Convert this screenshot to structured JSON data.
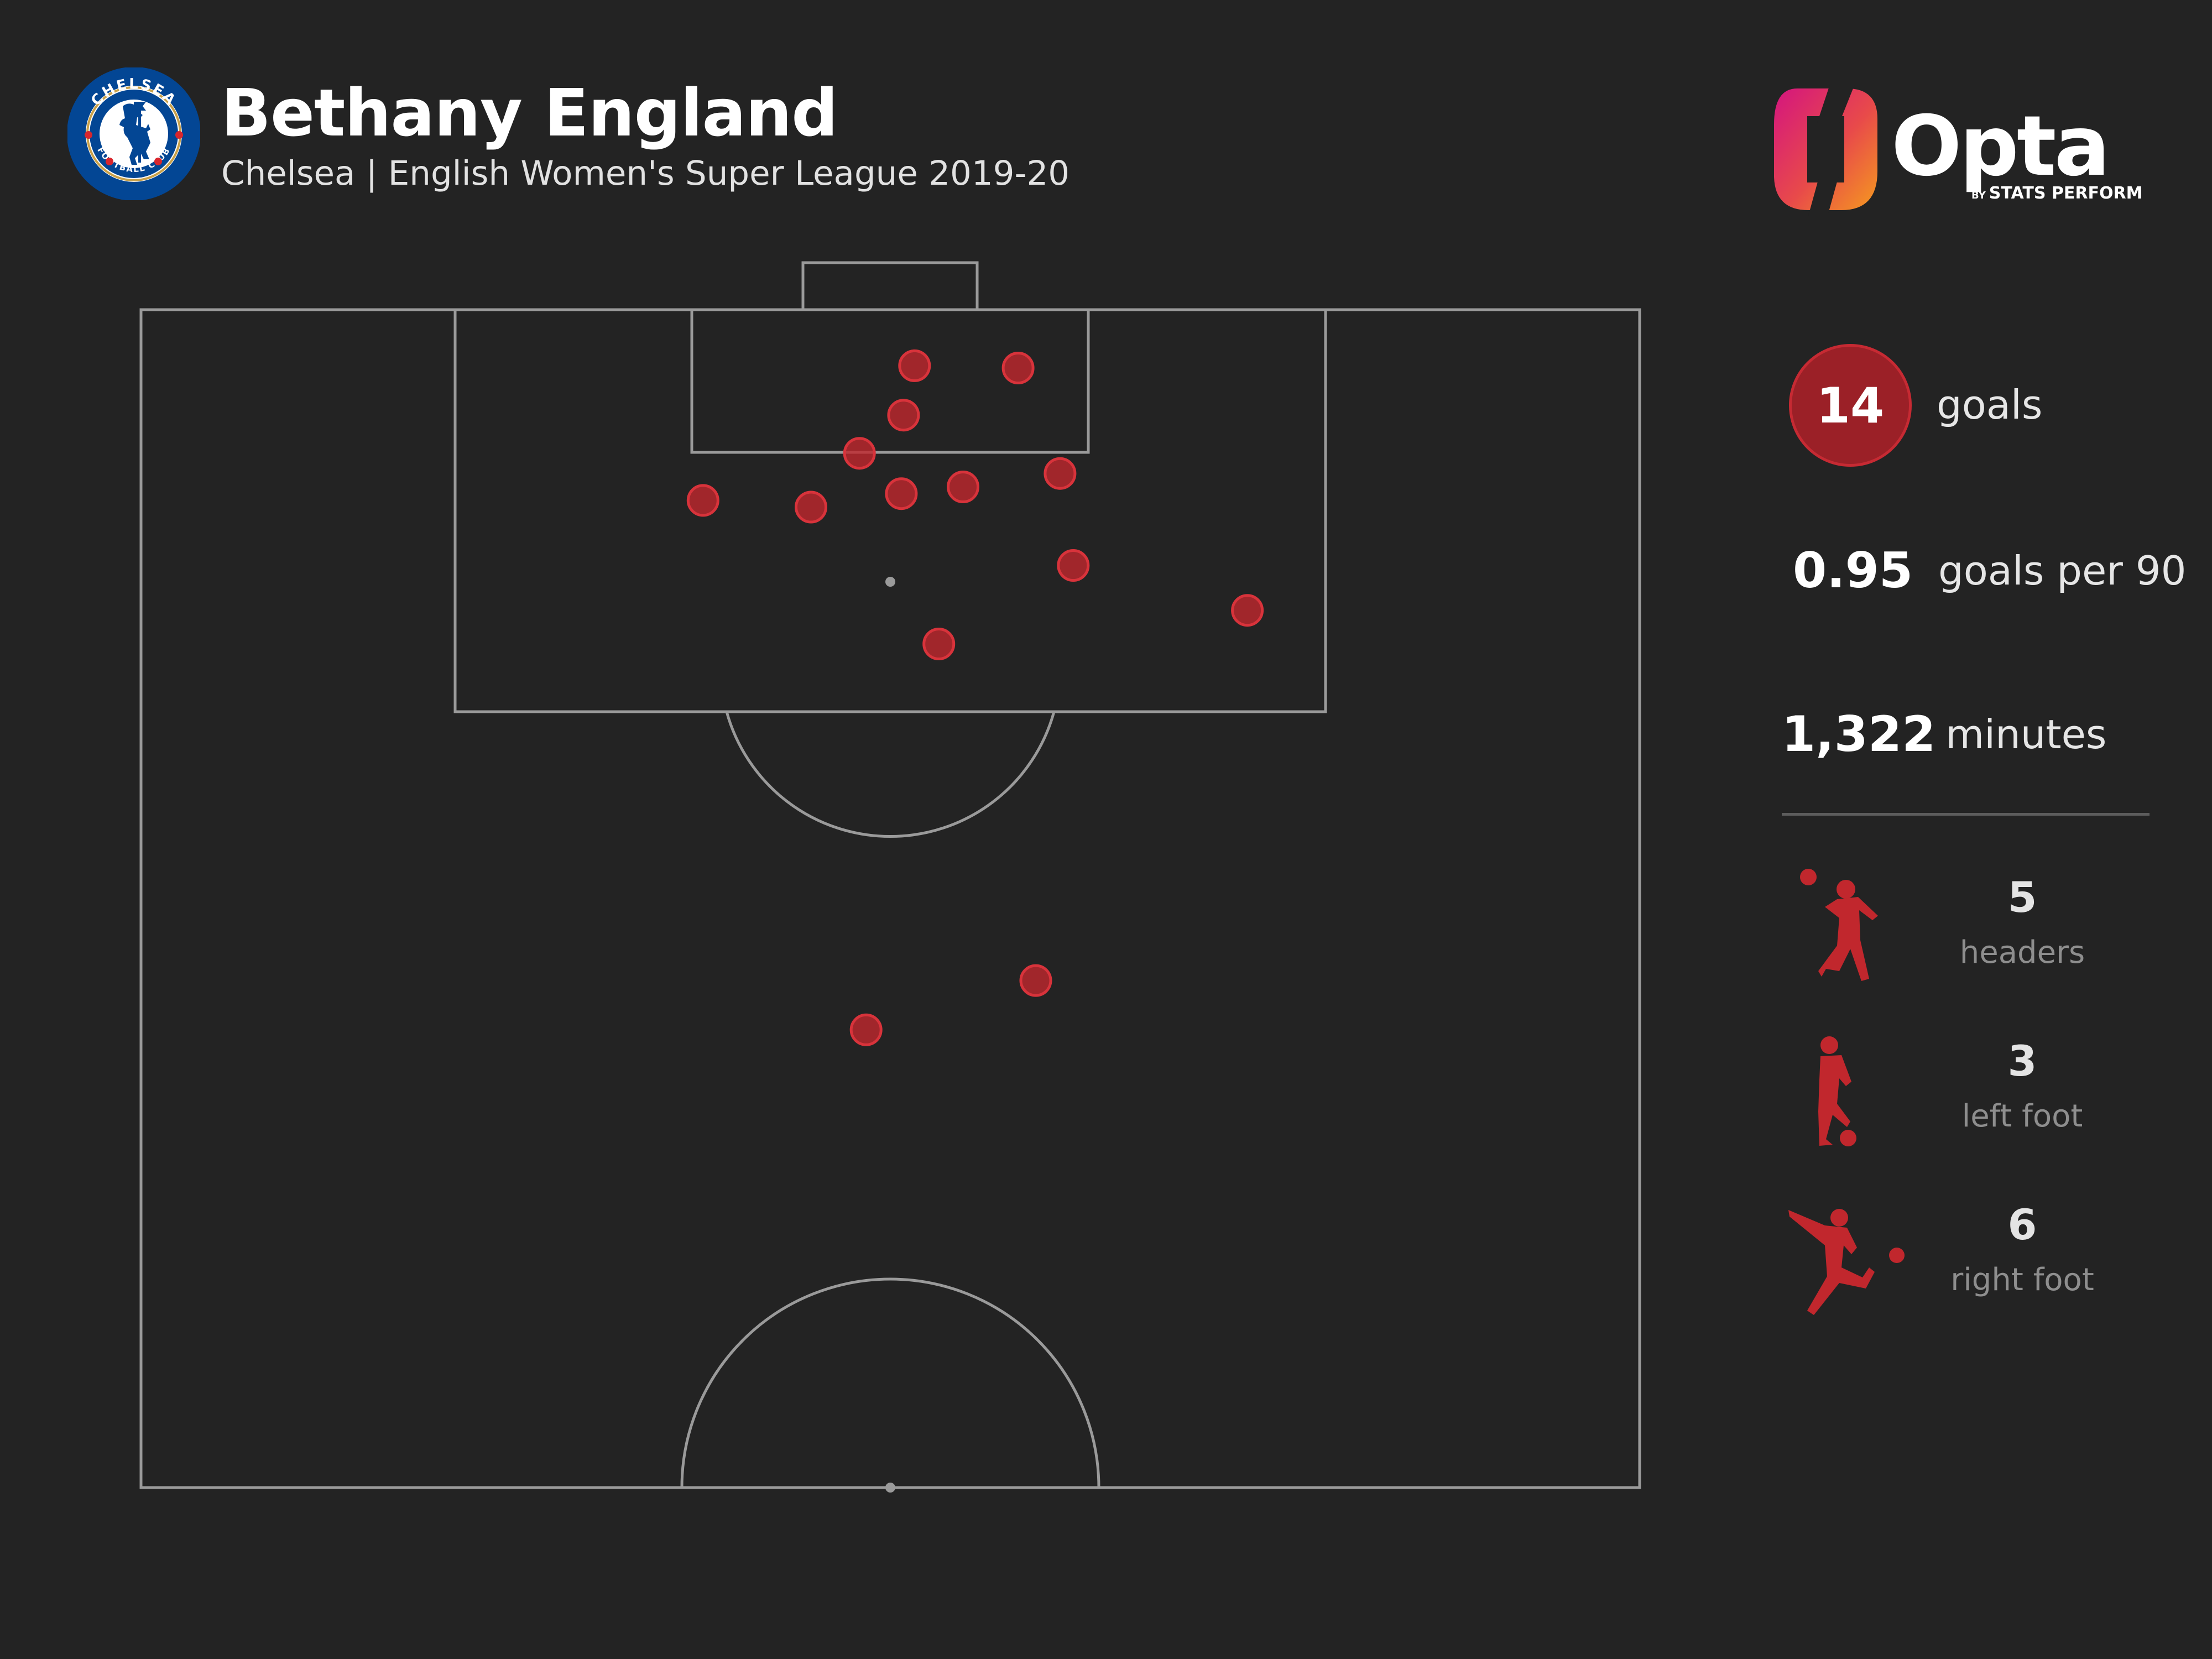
{
  "header": {
    "title": "Bethany England",
    "subtitle": "Chelsea | English Women's Super League 2019-20",
    "crest_text_top": "CHELSEA",
    "crest_text_bottom": "FOOTBALL CLUB",
    "crest_icon": "chelsea-lion-crest"
  },
  "branding": {
    "wordmark": "Opta",
    "by": "BY",
    "tagline": "STATS PERFORM"
  },
  "stats": {
    "goals_value": "14",
    "goals_label": "goals",
    "per90_value": "0.95",
    "per90_label": "goals per 90",
    "minutes_value": "1,322",
    "minutes_label": "minutes"
  },
  "goal_types": [
    {
      "value": "5",
      "label": "headers",
      "icon": "header-player-icon"
    },
    {
      "value": "3",
      "label": "left foot",
      "icon": "left-foot-player-icon"
    },
    {
      "value": "6",
      "label": "right foot",
      "icon": "right-foot-player-icon"
    }
  ],
  "colors": {
    "background": "#232323",
    "pitch_lines": "#9a9a9a",
    "goal_marker": "#c1272d",
    "goal_badge": "#9b2027",
    "crest_blue": "#034694",
    "opta_gradient": [
      "#e0177d",
      "#f39122"
    ]
  },
  "chart_data": {
    "type": "scatter",
    "title": "Bethany England",
    "subtitle": "Chelsea | English Women's Super League 2019-20",
    "pitch": "half-pitch, vertical, goal at top",
    "units": "metres from the goal line (y) and from the left touchline (x), pitch 68m wide",
    "points": [
      {
        "x": 35.1,
        "y": 2.5
      },
      {
        "x": 39.8,
        "y": 2.6
      },
      {
        "x": 34.6,
        "y": 4.7
      },
      {
        "x": 32.6,
        "y": 6.4
      },
      {
        "x": 25.5,
        "y": 8.5
      },
      {
        "x": 30.4,
        "y": 8.8
      },
      {
        "x": 34.5,
        "y": 8.2
      },
      {
        "x": 37.3,
        "y": 7.9
      },
      {
        "x": 41.7,
        "y": 7.3
      },
      {
        "x": 42.3,
        "y": 11.4
      },
      {
        "x": 50.2,
        "y": 13.4
      },
      {
        "x": 36.2,
        "y": 14.9
      },
      {
        "x": 40.6,
        "y": 29.9
      },
      {
        "x": 32.9,
        "y": 32.1
      }
    ]
  }
}
